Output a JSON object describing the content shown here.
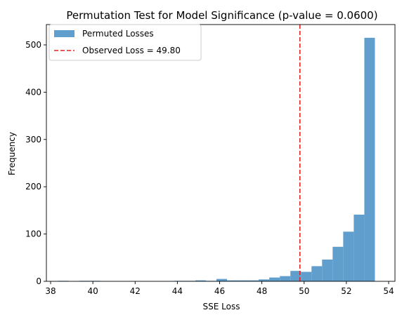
{
  "chart_data": {
    "type": "bar",
    "title": "Permutation Test for Model Significance (p-value = 0.0600)",
    "xlabel": "SSE Loss",
    "ylabel": "Frequency",
    "xlim": [
      37.8,
      54.3
    ],
    "ylim": [
      0,
      543
    ],
    "xticks": [
      38,
      40,
      42,
      44,
      46,
      48,
      50,
      52,
      54
    ],
    "yticks": [
      0,
      100,
      200,
      300,
      400,
      500
    ],
    "bins": {
      "start": 38.35,
      "width": 0.5,
      "counts": [
        1,
        0,
        1,
        1,
        0,
        0,
        0,
        0,
        0,
        0,
        0,
        1,
        1,
        2,
        1,
        5,
        2,
        2,
        2,
        4,
        8,
        11,
        22,
        20,
        32,
        46,
        73,
        105,
        141,
        515
      ]
    },
    "observed_loss": 49.8,
    "grid": false,
    "legend_position": "upper-left",
    "legend": [
      {
        "label": "Permuted Losses",
        "kind": "patch",
        "color": "#5f9ecd"
      },
      {
        "label": "Observed Loss = 49.80",
        "kind": "dashed-line",
        "color": "#e8201f"
      }
    ],
    "colors": {
      "bars": "#5f9ecd",
      "observed_line": "#e8201f",
      "axes": "#000000"
    }
  }
}
